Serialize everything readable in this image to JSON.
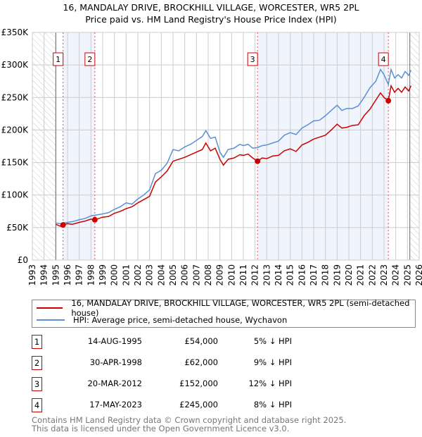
{
  "chart_data": {
    "type": "line",
    "title": "16, MANDALAY DRIVE, BROCKHILL VILLAGE, WORCESTER, WR5 2PL",
    "subtitle": "Price paid vs. HM Land Registry's House Price Index (HPI)",
    "xlim": [
      1993,
      2026
    ],
    "ylim": [
      0,
      350000
    ],
    "yticks": [
      {
        "v": 0,
        "label": "£0"
      },
      {
        "v": 50000,
        "label": "£50K"
      },
      {
        "v": 100000,
        "label": "£100K"
      },
      {
        "v": 150000,
        "label": "£150K"
      },
      {
        "v": 200000,
        "label": "£200K"
      },
      {
        "v": 250000,
        "label": "£250K"
      },
      {
        "v": 300000,
        "label": "£300K"
      },
      {
        "v": 350000,
        "label": "£350K"
      }
    ],
    "xticks": [
      "1993",
      "1994",
      "1995",
      "1996",
      "1997",
      "1998",
      "1999",
      "2000",
      "2001",
      "2002",
      "2003",
      "2004",
      "2005",
      "2006",
      "2007",
      "2008",
      "2009",
      "2010",
      "2011",
      "2012",
      "2013",
      "2014",
      "2015",
      "2016",
      "2017",
      "2018",
      "2019",
      "2020",
      "2021",
      "2022",
      "2023",
      "2024",
      "2025",
      "2026"
    ],
    "hatched_ranges": [
      [
        1993,
        1995
      ],
      [
        2025.2,
        2026
      ]
    ],
    "shaded_ranges": [
      [
        1995.62,
        1998.33
      ],
      [
        2012.21,
        2023.37
      ]
    ],
    "series": [
      {
        "name": "16, MANDALAY DRIVE, BROCKHILL VILLAGE, WORCESTER, WR5 2PL (semi-detached house)",
        "color": "#cc0000",
        "x": [
          1995.0,
          1995.4,
          1995.62,
          1996.0,
          1996.4,
          1997.0,
          1997.5,
          1998.0,
          1998.33,
          1999.0,
          1999.5,
          2000.0,
          2000.5,
          2001.0,
          2001.5,
          2002.0,
          2002.5,
          2003.0,
          2003.5,
          2004.0,
          2004.5,
          2005.0,
          2005.5,
          2006.0,
          2006.5,
          2007.0,
          2007.5,
          2007.8,
          2008.2,
          2008.6,
          2009.0,
          2009.3,
          2009.7,
          2010.2,
          2010.7,
          2011.0,
          2011.4,
          2011.8,
          2012.21,
          2012.6,
          2013.0,
          2013.5,
          2014.0,
          2014.5,
          2015.0,
          2015.5,
          2016.0,
          2016.5,
          2017.0,
          2017.5,
          2018.0,
          2018.5,
          2019.0,
          2019.4,
          2019.8,
          2020.3,
          2020.8,
          2021.3,
          2021.8,
          2022.3,
          2022.7,
          2023.0,
          2023.37,
          2023.6,
          2023.9,
          2024.2,
          2024.5,
          2024.8,
          2025.1,
          2025.3
        ],
        "y": [
          55000,
          52000,
          54000,
          56000,
          55000,
          58000,
          60000,
          63000,
          62000,
          66000,
          67000,
          72000,
          75000,
          79000,
          82000,
          88000,
          93000,
          98000,
          120000,
          128000,
          137000,
          152000,
          155000,
          158000,
          162000,
          166000,
          170000,
          180000,
          168000,
          172000,
          155000,
          146000,
          155000,
          157000,
          162000,
          161000,
          163000,
          157000,
          152000,
          157000,
          156000,
          160000,
          161000,
          168000,
          171000,
          167000,
          177000,
          181000,
          186000,
          189000,
          192000,
          200000,
          209000,
          203000,
          204000,
          207000,
          208000,
          222000,
          232000,
          246000,
          257000,
          250000,
          245000,
          268000,
          258000,
          264000,
          258000,
          266000,
          260000,
          268000
        ]
      },
      {
        "name": "HPI: Average price, semi-detached house, Wychavon",
        "color": "#5b8fd6",
        "x": [
          1995.0,
          1995.4,
          1995.62,
          1996.0,
          1996.4,
          1997.0,
          1997.5,
          1998.0,
          1998.33,
          1999.0,
          1999.5,
          2000.0,
          2000.5,
          2001.0,
          2001.5,
          2002.0,
          2002.5,
          2003.0,
          2003.5,
          2004.0,
          2004.5,
          2005.0,
          2005.5,
          2006.0,
          2006.5,
          2007.0,
          2007.5,
          2007.8,
          2008.2,
          2008.6,
          2009.0,
          2009.3,
          2009.7,
          2010.2,
          2010.7,
          2011.0,
          2011.4,
          2011.8,
          2012.21,
          2012.6,
          2013.0,
          2013.5,
          2014.0,
          2014.5,
          2015.0,
          2015.5,
          2016.0,
          2016.5,
          2017.0,
          2017.5,
          2018.0,
          2018.5,
          2019.0,
          2019.4,
          2019.8,
          2020.3,
          2020.8,
          2021.3,
          2021.8,
          2022.3,
          2022.7,
          2023.0,
          2023.37,
          2023.6,
          2023.9,
          2024.2,
          2024.5,
          2024.8,
          2025.1,
          2025.3
        ],
        "y": [
          57000,
          56000,
          57000,
          58000,
          59000,
          62000,
          64000,
          68000,
          69000,
          71000,
          73000,
          78000,
          82000,
          88000,
          86000,
          94000,
          100000,
          108000,
          133000,
          138000,
          149000,
          170000,
          168000,
          174000,
          178000,
          184000,
          190000,
          199000,
          187000,
          189000,
          166000,
          158000,
          170000,
          172000,
          178000,
          176000,
          178000,
          172000,
          173000,
          176000,
          177000,
          180000,
          183000,
          192000,
          196000,
          193000,
          203000,
          208000,
          214000,
          215000,
          222000,
          230000,
          238000,
          230000,
          233000,
          233000,
          237000,
          250000,
          265000,
          275000,
          293000,
          285000,
          270000,
          293000,
          280000,
          285000,
          280000,
          290000,
          284000,
          292000
        ]
      }
    ],
    "sales": [
      {
        "n": "1",
        "x": 1995.62,
        "y": 54000,
        "date": "14-AUG-1995",
        "price": "£54,000",
        "hpi": "5% ↓ HPI"
      },
      {
        "n": "2",
        "x": 1998.33,
        "y": 62000,
        "date": "30-APR-1998",
        "price": "£62,000",
        "hpi": "9% ↓ HPI"
      },
      {
        "n": "3",
        "x": 2012.21,
        "y": 152000,
        "date": "20-MAR-2012",
        "price": "£152,000",
        "hpi": "12% ↓ HPI"
      },
      {
        "n": "4",
        "x": 2023.37,
        "y": 245000,
        "date": "17-MAY-2023",
        "price": "£245,000",
        "hpi": "8% ↓ HPI"
      }
    ]
  },
  "legend": {
    "property": "16, MANDALAY DRIVE, BROCKHILL VILLAGE, WORCESTER, WR5 2PL (semi-detached house)",
    "hpi": "HPI: Average price, semi-detached house, Wychavon"
  },
  "footer": {
    "line1": "Contains HM Land Registry data © Crown copyright and database right 2025.",
    "line2": "This data is licensed under the Open Government Licence v3.0."
  }
}
